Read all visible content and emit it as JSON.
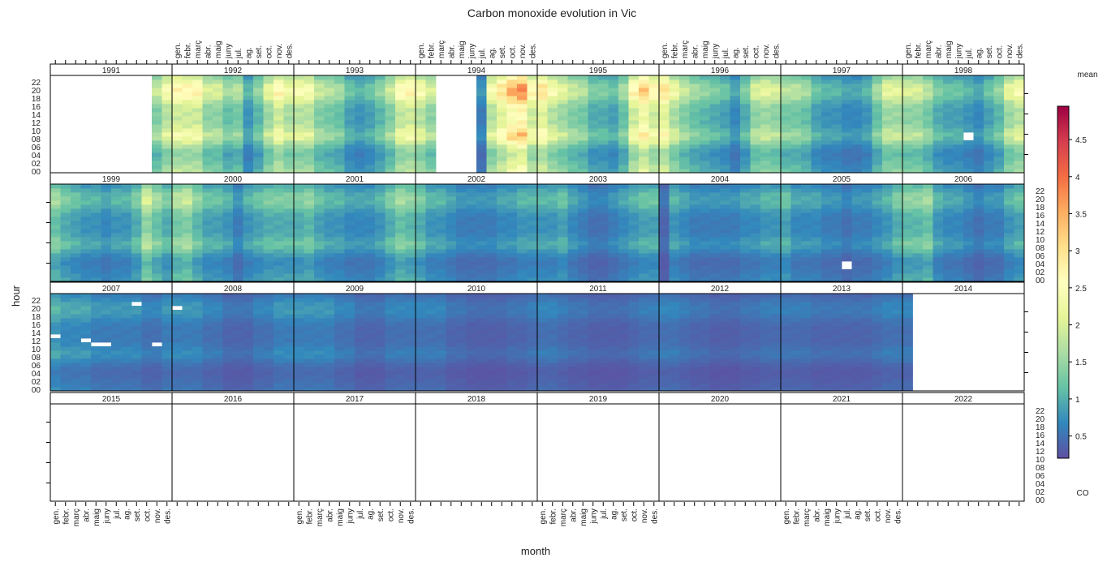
{
  "chart_data": {
    "type": "heatmap",
    "title": "Carbon monoxide evolution in Vic",
    "xlabel": "month",
    "ylabel": "hour",
    "legend": {
      "title": "mean",
      "variable": "CO",
      "ticks": [
        "0.5",
        "1",
        "1.5",
        "2",
        "2.5",
        "3",
        "3.5",
        "4",
        "4.5"
      ],
      "range": [
        0.2,
        4.95
      ],
      "placement": "right"
    },
    "palette": [
      "#5E4FA2",
      "#3288BD",
      "#66C2A5",
      "#ABDDA4",
      "#E6F598",
      "#FFFFBF",
      "#FEE08B",
      "#FDAE61",
      "#F46D43",
      "#D53E4F",
      "#9E0142"
    ],
    "months": [
      "gen.",
      "febr.",
      "març",
      "abr.",
      "maig",
      "juny",
      "jul.",
      "ag.",
      "set.",
      "oct.",
      "nov.",
      "des."
    ],
    "hour_labels": [
      "00",
      "02",
      "04",
      "06",
      "08",
      "10",
      "12",
      "14",
      "16",
      "18",
      "20",
      "22"
    ],
    "years": [
      "1991",
      "1992",
      "1993",
      "1994",
      "1995",
      "1996",
      "1997",
      "1998",
      "1999",
      "2000",
      "2001",
      "2002",
      "2003",
      "2004",
      "2005",
      "2006",
      "2007",
      "2008",
      "2009",
      "2010",
      "2011",
      "2012",
      "2013",
      "2014",
      "2015",
      "2016",
      "2017",
      "2018",
      "2019",
      "2020",
      "2021",
      "2022"
    ],
    "monthly_mean": {
      "1991": [
        null,
        null,
        null,
        null,
        null,
        null,
        null,
        null,
        null,
        null,
        1.4,
        1.8
      ],
      "1992": [
        2.0,
        2.0,
        2.0,
        1.5,
        1.5,
        1.2,
        1.3,
        0.8,
        1.1,
        1.6,
        2.0,
        1.7
      ],
      "1993": [
        1.8,
        1.8,
        1.4,
        1.3,
        1.2,
        0.9,
        0.8,
        0.9,
        1.1,
        1.4,
        1.9,
        2.0
      ],
      "1994": [
        1.8,
        1.5,
        null,
        null,
        null,
        null,
        0.6,
        1.8,
        2.2,
        2.6,
        2.8,
        2.0
      ],
      "1995": [
        2.2,
        1.8,
        1.6,
        1.4,
        1.3,
        1.0,
        1.0,
        0.9,
        1.2,
        2.0,
        2.4,
        2.0
      ],
      "1996": [
        2.2,
        1.7,
        1.4,
        1.2,
        1.1,
        1.0,
        0.9,
        0.7,
        1.0,
        1.5,
        1.6,
        1.5
      ],
      "1997": [
        1.3,
        1.3,
        1.2,
        0.9,
        0.8,
        0.8,
        0.7,
        0.7,
        0.8,
        1.2,
        1.6,
        1.6
      ],
      "1998": [
        1.5,
        1.5,
        1.3,
        1.0,
        0.9,
        0.9,
        0.8,
        0.7,
        0.9,
        1.1,
        1.6,
        1.8
      ],
      "1999": [
        1.2,
        1.0,
        0.9,
        0.8,
        0.8,
        0.7,
        0.8,
        0.8,
        1.0,
        1.5,
        1.2,
        1.0
      ],
      "2000": [
        1.3,
        1.4,
        1.1,
        0.9,
        0.9,
        0.8,
        0.6,
        0.8,
        0.9,
        1.0,
        1.0,
        1.0
      ],
      "2001": [
        1.0,
        1.1,
        0.9,
        0.8,
        0.8,
        0.7,
        0.7,
        0.7,
        0.8,
        1.0,
        1.2,
        1.1
      ],
      "2002": [
        1.0,
        0.8,
        0.8,
        0.7,
        0.6,
        0.6,
        0.6,
        0.6,
        0.7,
        0.7,
        0.8,
        0.8
      ],
      "2003": [
        0.8,
        0.8,
        0.9,
        0.7,
        0.6,
        0.5,
        0.5,
        0.6,
        0.7,
        0.8,
        0.9,
        0.9
      ],
      "2004": [
        0.4,
        0.8,
        0.7,
        0.6,
        0.6,
        0.6,
        0.6,
        0.6,
        0.7,
        0.7,
        0.8,
        0.8
      ],
      "2005": [
        0.9,
        0.7,
        0.7,
        0.7,
        0.6,
        0.6,
        0.5,
        0.6,
        0.6,
        0.7,
        0.8,
        1.0
      ],
      "2006": [
        1.1,
        1.1,
        1.2,
        0.8,
        0.7,
        0.7,
        0.6,
        0.5,
        0.6,
        0.6,
        0.8,
        0.9
      ],
      "2007": [
        0.8,
        0.7,
        0.7,
        0.7,
        0.6,
        0.6,
        0.6,
        0.6,
        0.6,
        0.5,
        0.5,
        0.6
      ],
      "2008": [
        0.6,
        0.6,
        0.6,
        0.5,
        0.5,
        0.4,
        0.4,
        0.4,
        0.5,
        0.5,
        0.6,
        0.6
      ],
      "2009": [
        0.6,
        0.6,
        0.6,
        0.6,
        0.5,
        0.5,
        0.4,
        0.4,
        0.4,
        0.5,
        0.5,
        0.5
      ],
      "2010": [
        0.5,
        0.5,
        0.5,
        0.4,
        0.4,
        0.35,
        0.35,
        0.35,
        0.35,
        0.4,
        0.4,
        0.45
      ],
      "2011": [
        0.5,
        0.5,
        0.45,
        0.4,
        0.4,
        0.35,
        0.35,
        0.35,
        0.35,
        0.4,
        0.45,
        0.45
      ],
      "2012": [
        0.5,
        0.5,
        0.45,
        0.4,
        0.4,
        0.35,
        0.35,
        0.35,
        0.4,
        0.4,
        0.45,
        0.45
      ],
      "2013": [
        0.45,
        0.45,
        0.45,
        0.4,
        0.4,
        0.4,
        0.4,
        0.4,
        0.4,
        0.45,
        0.5,
        0.5
      ],
      "2014": [
        0.5,
        null,
        null,
        null,
        null,
        null,
        null,
        null,
        null,
        null,
        null,
        null
      ],
      "2015": [
        null,
        null,
        null,
        null,
        null,
        null,
        null,
        null,
        null,
        null,
        null,
        null
      ],
      "2016": [
        null,
        null,
        null,
        null,
        null,
        null,
        null,
        null,
        null,
        null,
        null,
        null
      ],
      "2017": [
        null,
        null,
        null,
        null,
        null,
        null,
        null,
        null,
        null,
        null,
        null,
        null
      ],
      "2018": [
        null,
        null,
        null,
        null,
        null,
        null,
        null,
        null,
        null,
        null,
        null,
        null
      ],
      "2019": [
        null,
        null,
        null,
        null,
        null,
        null,
        null,
        null,
        null,
        null,
        null,
        null
      ],
      "2020": [
        null,
        null,
        null,
        null,
        null,
        null,
        null,
        null,
        null,
        null,
        null,
        null
      ],
      "2021": [
        null,
        null,
        null,
        null,
        null,
        null,
        null,
        null,
        null,
        null,
        null,
        null
      ],
      "2022": [
        null,
        null,
        null,
        null,
        null,
        null,
        null,
        null,
        null,
        null,
        null,
        null
      ]
    },
    "diurnal_factor": [
      0.9,
      0.85,
      0.8,
      0.75,
      0.72,
      0.75,
      0.85,
      1.0,
      1.15,
      1.2,
      1.1,
      1.0,
      0.95,
      0.95,
      0.95,
      0.95,
      1.0,
      1.1,
      1.25,
      1.35,
      1.35,
      1.3,
      1.15,
      1.0
    ],
    "missing_cells": [
      [
        1998,
        7,
        8
      ],
      [
        1998,
        7,
        9
      ],
      [
        2005,
        7,
        3
      ],
      [
        2005,
        7,
        4
      ],
      [
        2007,
        1,
        13
      ],
      [
        2007,
        4,
        12
      ],
      [
        2007,
        5,
        11
      ],
      [
        2007,
        6,
        11
      ],
      [
        2007,
        9,
        21
      ],
      [
        2007,
        11,
        11
      ],
      [
        2008,
        1,
        20
      ]
    ]
  }
}
